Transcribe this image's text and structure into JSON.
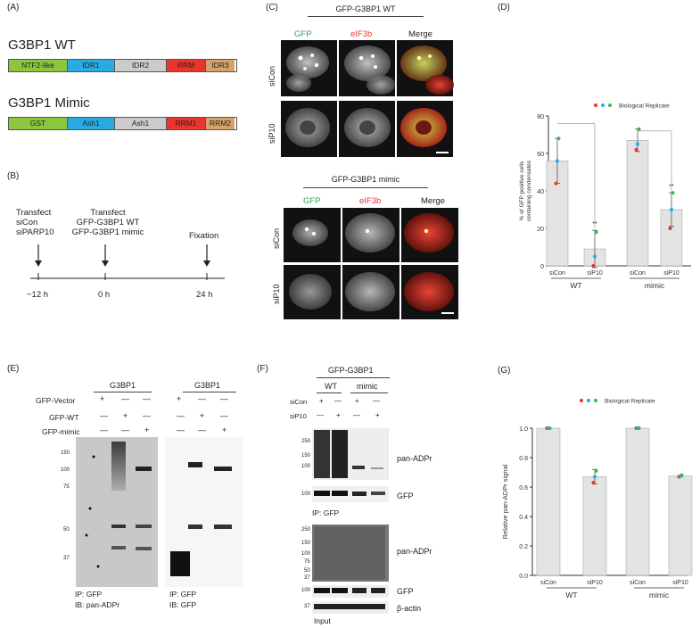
{
  "panels": {
    "a": "(A)",
    "b": "(B)",
    "c": "(C)",
    "d": "(D)",
    "e": "(E)",
    "f": "(F)",
    "g": "(G)"
  },
  "panel_a": {
    "wt": {
      "title": "G3BP1 WT",
      "domains": [
        "NTF2-like",
        "IDR1",
        "IDR2",
        "RRM",
        "IDR3"
      ],
      "colors": [
        "#8cc63f",
        "#29abe2",
        "#cccccc",
        "#e8352e",
        "#d4a26a"
      ]
    },
    "mimic": {
      "title": "G3BP1 Mimic",
      "domains": [
        "GST",
        "Ash1",
        "Ash1",
        "RRM1",
        "RRM2"
      ],
      "colors": [
        "#8cc63f",
        "#29abe2",
        "#cccccc",
        "#e8352e",
        "#d4a26a"
      ]
    }
  },
  "panel_b": {
    "events": [
      {
        "lines": [
          "Transfect",
          "siCon",
          "siPARP10"
        ],
        "time": "−12 h"
      },
      {
        "lines": [
          "Transfect",
          "GFP-G3BP1 WT",
          "GFP-G3BP1 mimic"
        ],
        "time": "0 h"
      },
      {
        "lines": [
          "Fixation"
        ],
        "time": "24 h"
      }
    ]
  },
  "panel_c": {
    "wt_title": "GFP-G3BP1 WT",
    "mimic_title": "GFP-G3BP1 mimic",
    "cols": [
      "GFP",
      "eIF3b",
      "Merge"
    ],
    "rows": [
      "siCon",
      "siP10"
    ]
  },
  "panel_e": {
    "header": "G3BP1",
    "rows": [
      {
        "label": "GFP-Vector",
        "marks": [
          "+",
          "—",
          "—"
        ]
      },
      {
        "label": "GFP-WT",
        "marks": [
          "—",
          "+",
          "—"
        ]
      },
      {
        "label": "GFP-mimic",
        "marks": [
          "—",
          "—",
          "+"
        ]
      }
    ],
    "mw": [
      "150",
      "100",
      "75",
      "50",
      "37"
    ],
    "captions_left": [
      "IP: GFP",
      "IB: pan-ADPr"
    ],
    "captions_right": [
      "IP: GFP",
      "IB: GFP"
    ]
  },
  "panel_f": {
    "header": "GFP-G3BP1",
    "groups": [
      "WT",
      "mimic"
    ],
    "rows": [
      {
        "label": "siCon",
        "marks": [
          "+",
          "—",
          "+",
          "—"
        ]
      },
      {
        "label": "siP10",
        "marks": [
          "—",
          "+",
          "—",
          "+"
        ]
      }
    ],
    "blots": [
      {
        "label": "pan-ADPr",
        "mw": [
          "250",
          "150",
          "100"
        ]
      },
      {
        "label": "GFP",
        "mw": [
          "100"
        ]
      },
      {
        "label": "pan-ADPr",
        "mw": [
          "250",
          "150",
          "100",
          "75",
          "50",
          "37"
        ]
      },
      {
        "label": "GFP",
        "mw": [
          "100"
        ]
      },
      {
        "label": "β-actin",
        "mw": [
          "37"
        ]
      }
    ],
    "ip_caption": "IP: GFP",
    "input_caption": "Input"
  },
  "chart_data": [
    {
      "type": "bar",
      "panel": "D",
      "categories": [
        "siCon",
        "siP10",
        "siCon",
        "siP10"
      ],
      "groups": [
        "WT",
        "mimic"
      ],
      "values": [
        56,
        9,
        67,
        30
      ],
      "errors": [
        12,
        10,
        6,
        9
      ],
      "replicates": [
        [
          44,
          56,
          68
        ],
        [
          0,
          5,
          18
        ],
        [
          62,
          65,
          73
        ],
        [
          20,
          30,
          39
        ]
      ],
      "replicate_colors": [
        "#e8352e",
        "#29abe2",
        "#3cb54a"
      ],
      "significance": [
        "",
        "**",
        "",
        "**"
      ],
      "ylabel": "% of GFP positive cells containing condensates",
      "ylim": [
        0,
        80
      ],
      "yticks": [
        0,
        20,
        40,
        60,
        80
      ],
      "legend": "Biological Replicate",
      "legend_placement": "top-right"
    },
    {
      "type": "bar",
      "panel": "G",
      "categories": [
        "siCon",
        "siP10",
        "siCon",
        "siP10"
      ],
      "groups": [
        "WT",
        "mimic"
      ],
      "values": [
        1.0,
        0.67,
        1.0,
        0.675
      ],
      "errors": [
        0,
        0.05,
        0,
        0.005
      ],
      "replicates": [
        [
          1.0,
          1.0,
          1.0
        ],
        [
          0.63,
          0.67,
          0.71
        ],
        [
          1.0,
          1.0,
          1.0
        ],
        [
          0.67,
          0.675,
          0.68
        ]
      ],
      "replicate_colors": [
        "#e8352e",
        "#29abe2",
        "#3cb54a"
      ],
      "ylabel": "Relative pan-ADPr signal",
      "ylim": [
        0,
        1.0
      ],
      "yticks": [
        "0.0",
        "0.2",
        "0.4",
        "0.6",
        "0.8",
        "1.0"
      ],
      "legend": "Biological Replicate",
      "legend_placement": "top-right"
    }
  ]
}
